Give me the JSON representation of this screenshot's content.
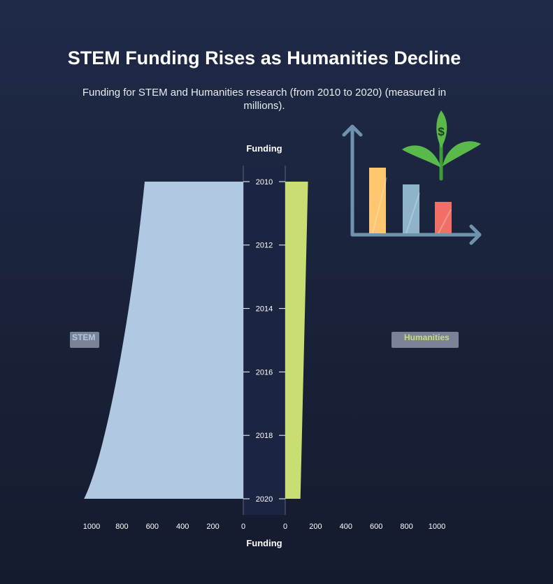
{
  "title": "STEM Funding Rises as Humanities Decline",
  "subtitle": "Funding for STEM and Humanities research (from 2010 to 2020) (measured in millions).",
  "colors": {
    "stem": "#b0c8e2",
    "humanities": "#c8de72",
    "center_band": "#1b2440"
  },
  "chart_data": {
    "type": "area",
    "layout": "back-to-back funnel",
    "x": [
      2010,
      2020
    ],
    "series": [
      {
        "name": "STEM",
        "side": "left",
        "values": [
          650,
          1050
        ]
      },
      {
        "name": "Humanities",
        "side": "right",
        "values": [
          150,
          100
        ]
      }
    ],
    "year_ticks": [
      "2010",
      "2012",
      "2014",
      "2016",
      "2018",
      "2020"
    ],
    "left_axis": {
      "title": "Funding",
      "ticks": [
        1000,
        800,
        600,
        400,
        200,
        0
      ],
      "range": [
        0,
        1050
      ]
    },
    "right_axis": {
      "title": "Funding",
      "ticks": [
        0,
        200,
        400,
        600,
        800,
        1000
      ],
      "range": [
        0,
        1050
      ]
    },
    "legend": [
      "STEM",
      "Humanities"
    ]
  }
}
